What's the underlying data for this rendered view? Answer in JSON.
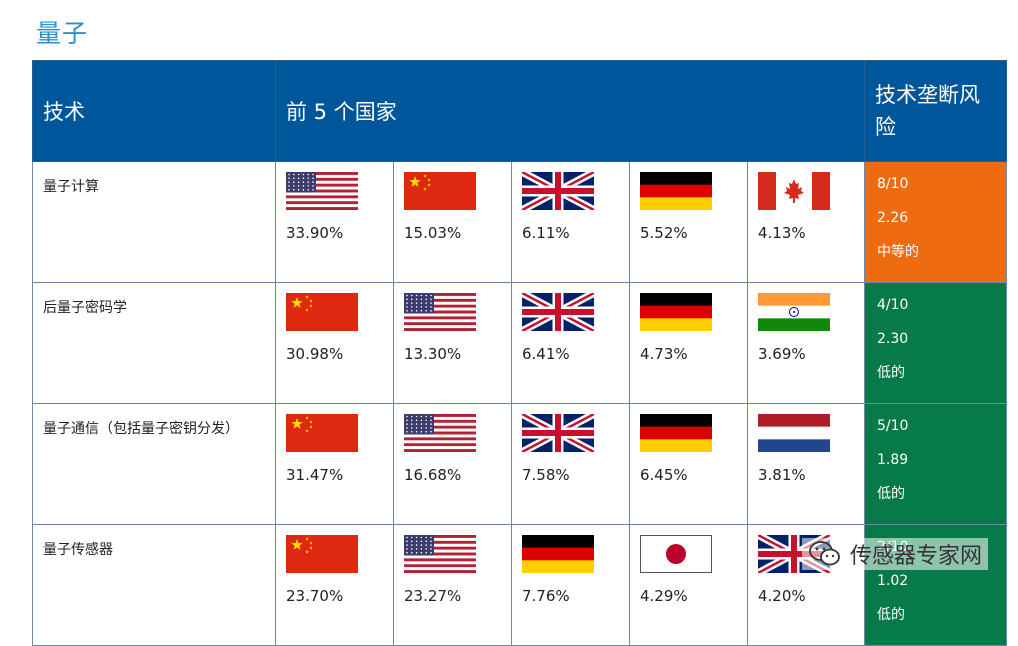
{
  "title": "量子",
  "headers": {
    "tech": "技术",
    "top5": "前 5 个国家",
    "risk": "技术垄断风险"
  },
  "rows": [
    {
      "tech": "量子计算",
      "countries": [
        {
          "flag": "us-flag",
          "pct": "33.90%"
        },
        {
          "flag": "cn-flag",
          "pct": "15.03%"
        },
        {
          "flag": "uk-flag",
          "pct": "6.11%"
        },
        {
          "flag": "de-flag",
          "pct": "5.52%"
        },
        {
          "flag": "ca-flag",
          "pct": "4.13%"
        }
      ],
      "risk": {
        "score": "8/10",
        "value": "2.26",
        "level": "中等的",
        "color": "#ee6b0f"
      }
    },
    {
      "tech": "后量子密码学",
      "countries": [
        {
          "flag": "cn-flag",
          "pct": "30.98%"
        },
        {
          "flag": "us-flag",
          "pct": "13.30%"
        },
        {
          "flag": "uk-flag",
          "pct": "6.41%"
        },
        {
          "flag": "de-flag",
          "pct": "4.73%"
        },
        {
          "flag": "in-flag",
          "pct": "3.69%"
        }
      ],
      "risk": {
        "score": "4/10",
        "value": "2.30",
        "level": "低的",
        "color": "#067a49"
      }
    },
    {
      "tech": "量子通信（包括量子密钥分发）",
      "countries": [
        {
          "flag": "cn-flag",
          "pct": "31.47%"
        },
        {
          "flag": "us-flag",
          "pct": "16.68%"
        },
        {
          "flag": "uk-flag",
          "pct": "7.58%"
        },
        {
          "flag": "de-flag",
          "pct": "6.45%"
        },
        {
          "flag": "nl-flag",
          "pct": "3.81%"
        }
      ],
      "risk": {
        "score": "5/10",
        "value": "1.89",
        "level": "低的",
        "color": "#067a49"
      }
    },
    {
      "tech": "量子传感器",
      "countries": [
        {
          "flag": "cn-flag",
          "pct": "23.70%"
        },
        {
          "flag": "us-flag",
          "pct": "23.27%"
        },
        {
          "flag": "de-flag",
          "pct": "7.76%"
        },
        {
          "flag": "jp-flag",
          "pct": "4.29%"
        },
        {
          "flag": "uk-flag",
          "pct": "4.20%"
        }
      ],
      "risk": {
        "score": "2/10",
        "value": "1.02",
        "level": "低的",
        "color": "#067a49"
      }
    }
  ],
  "watermark": {
    "text": "传感器专家网",
    "icon": "wechat-icon"
  }
}
